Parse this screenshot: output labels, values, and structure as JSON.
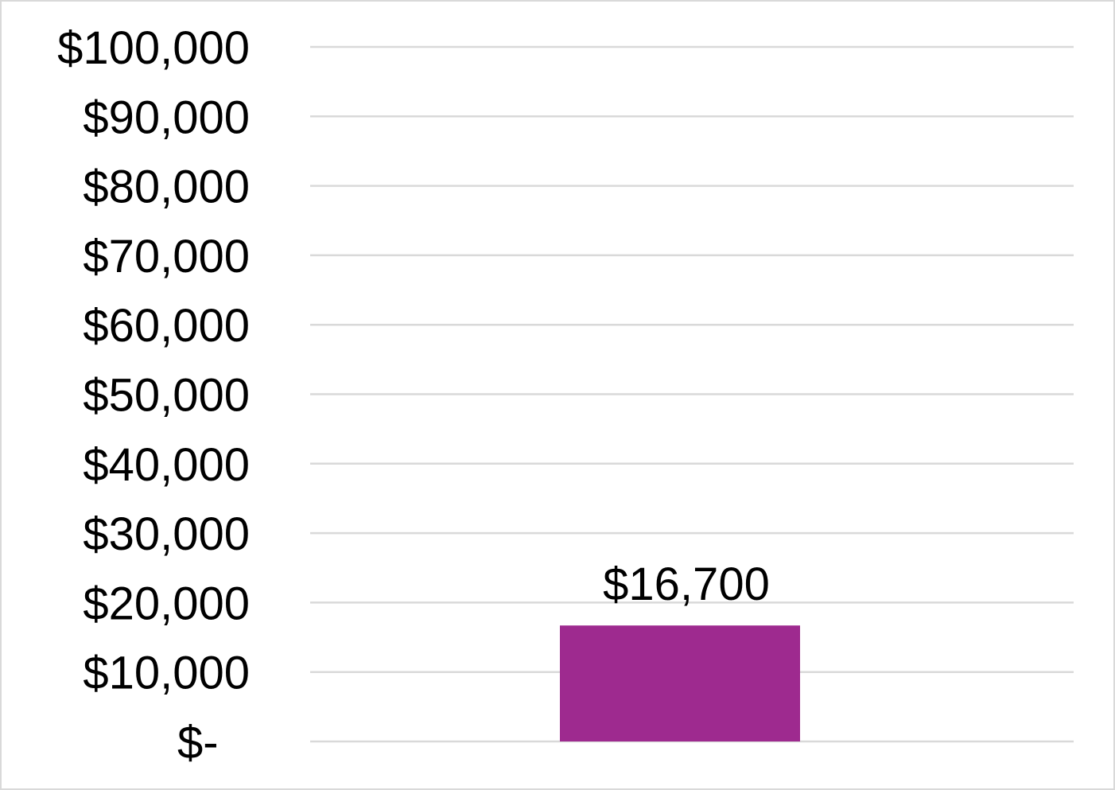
{
  "chart_data": {
    "type": "bar",
    "categories": [
      ""
    ],
    "values": [
      16700
    ],
    "data_labels": [
      "$16,700"
    ],
    "ylim": [
      0,
      100000
    ],
    "y_ticks": [
      0,
      10000,
      20000,
      30000,
      40000,
      50000,
      60000,
      70000,
      80000,
      90000,
      100000
    ],
    "y_tick_labels": [
      "$-",
      "$10,000",
      "$20,000",
      "$30,000",
      "$40,000",
      "$50,000",
      "$60,000",
      "$70,000",
      "$80,000",
      "$90,000",
      "$100,000"
    ],
    "grid": true,
    "legend": "none",
    "colors": {
      "bar": "#9e2a8f",
      "grid": "#d9d9d9",
      "border": "#d9d9d9",
      "text": "#000000"
    }
  }
}
